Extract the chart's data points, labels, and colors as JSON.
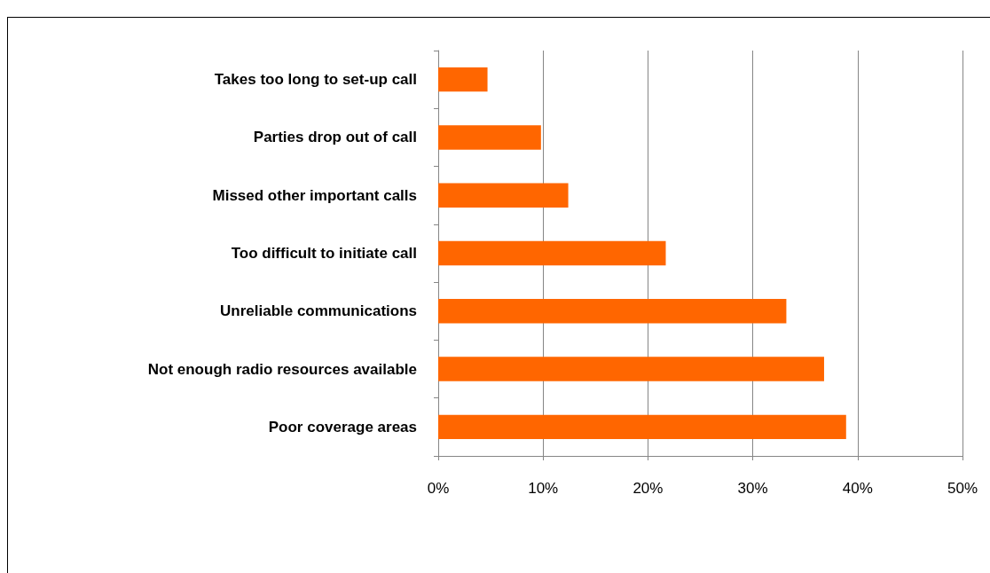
{
  "chart_data": {
    "type": "bar",
    "orientation": "horizontal",
    "categories": [
      "Takes too long to set-up call",
      "Parties drop out of call",
      "Missed other important calls",
      "Too difficult to initiate call",
      "Unreliable communications",
      "Not enough radio resources available",
      "Poor coverage areas"
    ],
    "values": [
      4.7,
      9.8,
      12.4,
      21.7,
      33.2,
      36.8,
      38.9
    ],
    "color": "#ff6600",
    "xlim": [
      0,
      50
    ],
    "xticks": [
      {
        "value": 0,
        "label": "0%"
      },
      {
        "value": 10,
        "label": "10%"
      },
      {
        "value": 20,
        "label": "20%"
      },
      {
        "value": 30,
        "label": "30%"
      },
      {
        "value": 40,
        "label": "40%"
      },
      {
        "value": 50,
        "label": "50%"
      }
    ],
    "grid": "x"
  }
}
